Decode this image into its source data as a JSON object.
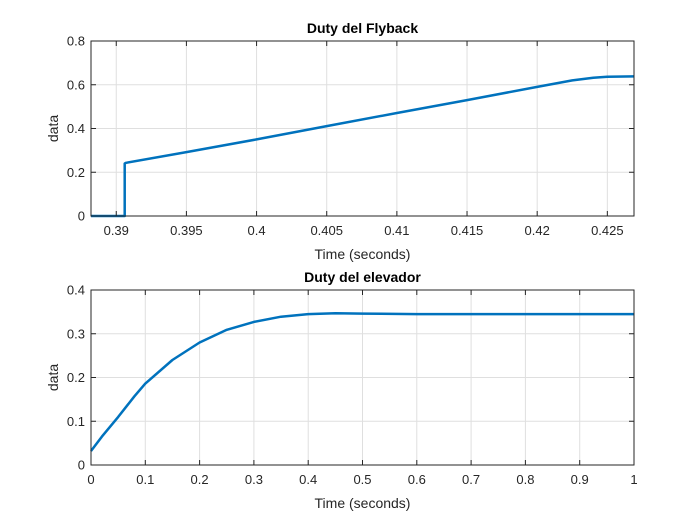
{
  "chart_data": [
    {
      "type": "line",
      "title": "Duty del Flyback",
      "xlabel": "Time (seconds)",
      "ylabel": "data",
      "xlim": [
        0.3882,
        0.4269
      ],
      "ylim": [
        0,
        0.8
      ],
      "xticks": [
        0.39,
        0.395,
        0.4,
        0.405,
        0.41,
        0.415,
        0.42,
        0.425
      ],
      "xtick_labels": [
        "0.39",
        "0.395",
        "0.4",
        "0.405",
        "0.41",
        "0.415",
        "0.42",
        "0.425"
      ],
      "yticks": [
        0,
        0.2,
        0.4,
        0.6,
        0.8
      ],
      "ytick_labels": [
        "0",
        "0.2",
        "0.4",
        "0.6",
        "0.8"
      ],
      "grid": true,
      "color": "#0072bd",
      "series": [
        {
          "x": [
            0.3882,
            0.3906,
            0.3906,
            0.3907,
            0.395,
            0.4,
            0.405,
            0.41,
            0.415,
            0.42,
            0.4225,
            0.424,
            0.425,
            0.4269
          ],
          "y": [
            0,
            0,
            0.24,
            0.243,
            0.292,
            0.35,
            0.411,
            0.471,
            0.53,
            0.59,
            0.62,
            0.632,
            0.637,
            0.638
          ]
        }
      ]
    },
    {
      "type": "line",
      "title": "Duty del elevador",
      "xlabel": "Time (seconds)",
      "ylabel": "data",
      "xlim": [
        0,
        1
      ],
      "ylim": [
        0,
        0.4
      ],
      "xticks": [
        0,
        0.1,
        0.2,
        0.3,
        0.4,
        0.5,
        0.6,
        0.7,
        0.8,
        0.9,
        1
      ],
      "xtick_labels": [
        "0",
        "0.1",
        "0.2",
        "0.3",
        "0.4",
        "0.5",
        "0.6",
        "0.7",
        "0.8",
        "0.9",
        "1"
      ],
      "yticks": [
        0,
        0.1,
        0.2,
        0.3,
        0.4
      ],
      "ytick_labels": [
        "0",
        "0.1",
        "0.2",
        "0.3",
        "0.4"
      ],
      "grid": true,
      "color": "#0072bd",
      "series": [
        {
          "x": [
            0,
            0.02,
            0.05,
            0.08,
            0.1,
            0.15,
            0.2,
            0.25,
            0.3,
            0.35,
            0.4,
            0.45,
            0.5,
            0.6,
            0.7,
            0.8,
            0.9,
            1.0
          ],
          "y": [
            0.032,
            0.065,
            0.11,
            0.157,
            0.186,
            0.24,
            0.28,
            0.309,
            0.327,
            0.339,
            0.345,
            0.347,
            0.346,
            0.345,
            0.345,
            0.345,
            0.345,
            0.345
          ]
        }
      ]
    }
  ]
}
